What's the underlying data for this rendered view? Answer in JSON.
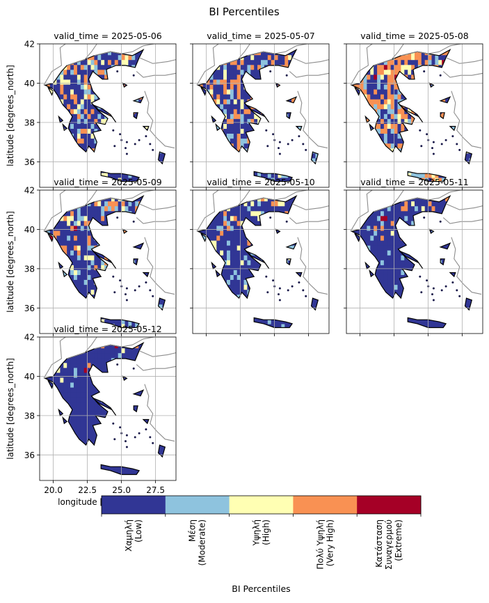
{
  "figure": {
    "title": "BI Percentiles"
  },
  "chart_data": {
    "type": "heatmap",
    "title": "BI Percentiles",
    "xlabel": "longitude [degrees_east]",
    "ylabel": "latitude [degrees_north]",
    "xlim": [
      19.0,
      29.0
    ],
    "ylim": [
      34.7,
      42.0
    ],
    "xticks": [
      20.0,
      22.5,
      25.0,
      27.5
    ],
    "xtick_labels": [
      "20.0",
      "22.5",
      "25.0",
      "27.5"
    ],
    "yticks": [
      36,
      38,
      40,
      42
    ],
    "ytick_labels": [
      "36",
      "38",
      "40",
      "42"
    ],
    "grid": true,
    "panels": [
      {
        "title": "valid_time = 2025-05-06",
        "dominant": [
          "Χαμηλή\n(Low)",
          "Πολύ Υψηλή\n(Very High)"
        ],
        "mix": [
          0.55,
          0.15,
          0.1,
          0.2,
          0.0
        ]
      },
      {
        "title": "valid_time = 2025-05-07",
        "dominant": [
          "Χαμηλή\n(Low)",
          "Πολύ Υψηλή\n(Very High)"
        ],
        "mix": [
          0.52,
          0.14,
          0.1,
          0.24,
          0.0
        ]
      },
      {
        "title": "valid_time = 2025-05-08",
        "dominant": [
          "Πολύ Υψηλή\n(Very High)",
          "Χαμηλή\n(Low)"
        ],
        "mix": [
          0.34,
          0.17,
          0.1,
          0.34,
          0.05
        ]
      },
      {
        "title": "valid_time = 2025-05-09",
        "dominant": [
          "Χαμηλή\n(Low)"
        ],
        "mix": [
          0.62,
          0.12,
          0.08,
          0.16,
          0.02
        ]
      },
      {
        "title": "valid_time = 2025-05-10",
        "dominant": [
          "Χαμηλή\n(Low)"
        ],
        "mix": [
          0.72,
          0.12,
          0.08,
          0.07,
          0.01
        ]
      },
      {
        "title": "valid_time = 2025-05-11",
        "dominant": [
          "Χαμηλή\n(Low)"
        ],
        "mix": [
          0.82,
          0.08,
          0.04,
          0.05,
          0.01
        ]
      },
      {
        "title": "valid_time = 2025-05-12",
        "dominant": [
          "Χαμηλή\n(Low)"
        ],
        "mix": [
          0.88,
          0.05,
          0.03,
          0.03,
          0.01
        ]
      }
    ],
    "colorbar": {
      "label": "BI Percentiles",
      "categories": [
        "Χαμηλή\n(Low)",
        "Μέση\n(Moderate)",
        "Υψηλή\n(High)",
        "Πολύ Υψηλή\n(Very High)",
        "Κατάσταση\nΣυναγερμού\n(Extreme)"
      ],
      "colors": [
        "#313695",
        "#8ec3de",
        "#ffffb3",
        "#f99153",
        "#a50026"
      ]
    }
  }
}
